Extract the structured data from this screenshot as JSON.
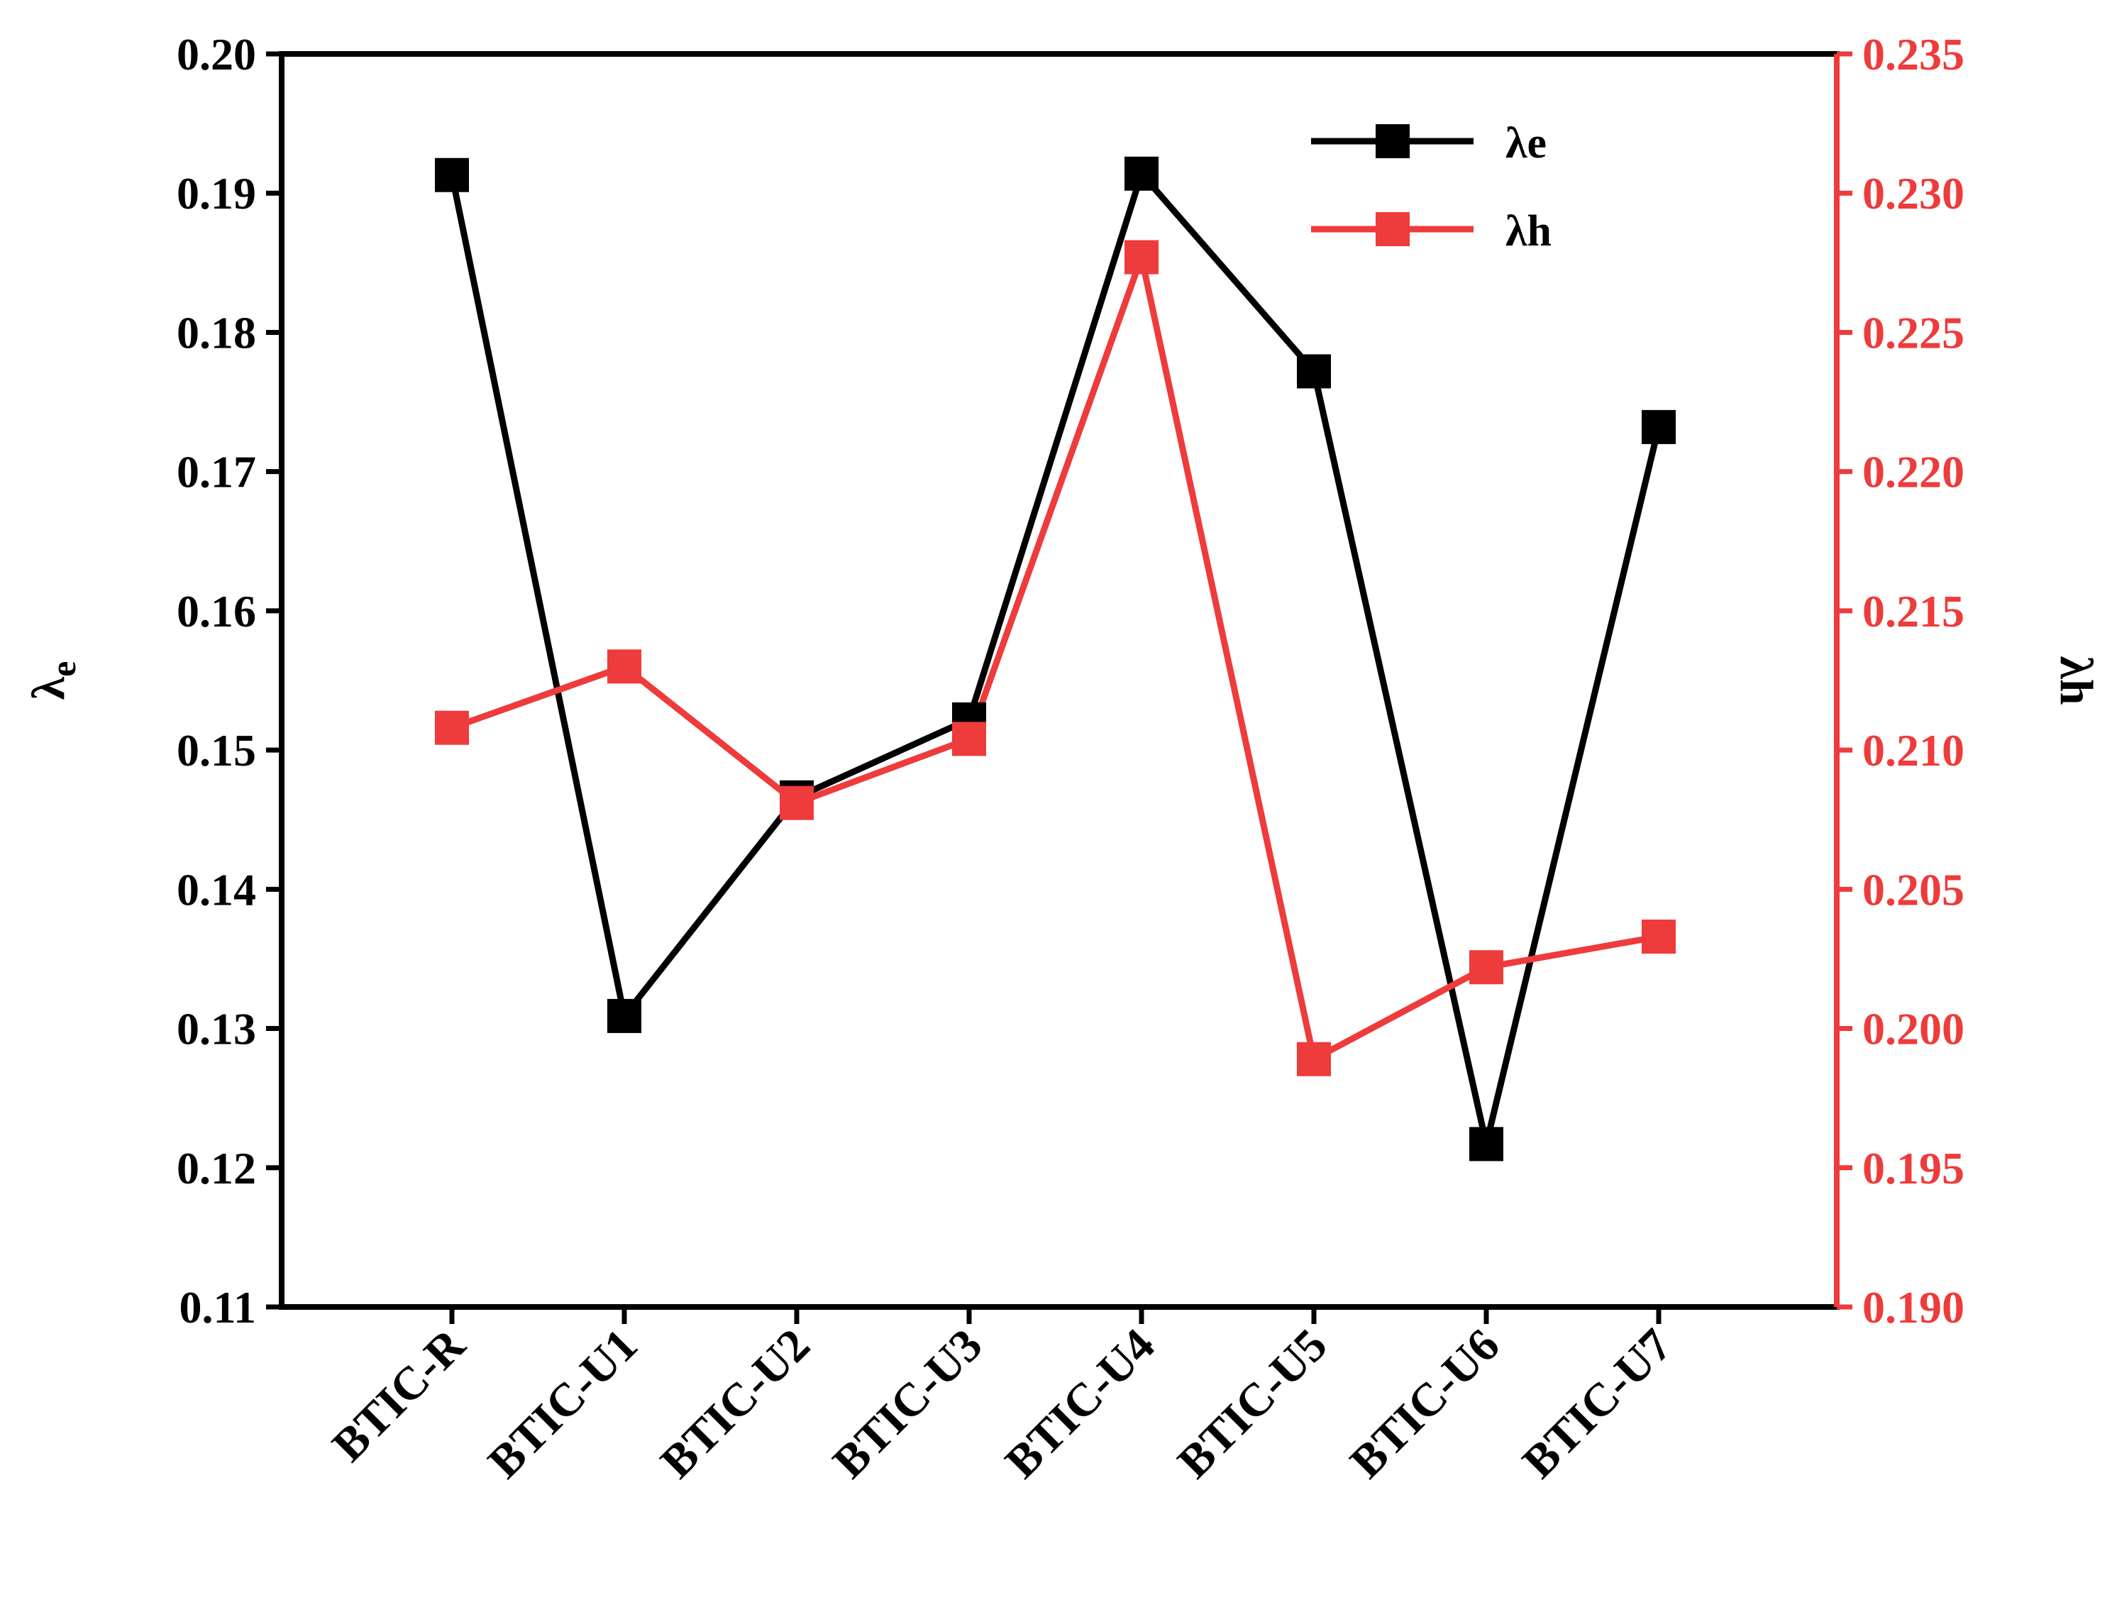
{
  "chart_data": {
    "type": "line",
    "categories": [
      "BTIC-R",
      "BTIC-U1",
      "BTIC-U2",
      "BTIC-U3",
      "BTIC-U4",
      "BTIC-U5",
      "BTIC-U6",
      "BTIC-U7"
    ],
    "left_axis": {
      "label": "λ",
      "label_sub": "e",
      "ylim": [
        0.11,
        0.2
      ],
      "ticks": [
        "0.11",
        "0.12",
        "0.13",
        "0.14",
        "0.15",
        "0.16",
        "0.17",
        "0.18",
        "0.19",
        "0.20"
      ],
      "color": "#000000"
    },
    "right_axis": {
      "label": "λh",
      "ylim": [
        0.19,
        0.235
      ],
      "ticks": [
        "0.190",
        "0.195",
        "0.200",
        "0.205",
        "0.210",
        "0.215",
        "0.220",
        "0.225",
        "0.230",
        "0.235"
      ],
      "color": "#ee3b3b"
    },
    "series": [
      {
        "name": "λe",
        "axis": "left",
        "color": "#000000",
        "values": [
          0.1913,
          0.1309,
          0.1466,
          0.1522,
          0.1914,
          0.1772,
          0.1217,
          0.1732
        ]
      },
      {
        "name": "λh",
        "axis": "right",
        "color": "#ee3b3b",
        "values": [
          0.2108,
          0.213,
          0.2081,
          0.2104,
          0.2277,
          0.1989,
          0.2022,
          0.2033
        ]
      }
    ],
    "legend_position": "top-right"
  }
}
